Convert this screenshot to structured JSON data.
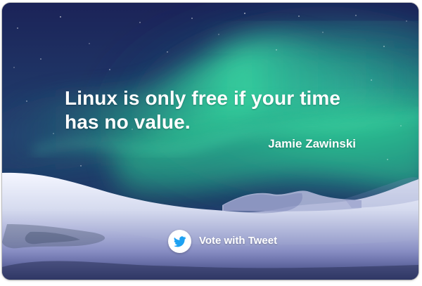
{
  "quote_card": {
    "quote": "Linux is only free if your time has no value.",
    "author": "Jamie Zawinski",
    "tweet_label": "Vote with Tweet",
    "background_image": "aurora-snow-night",
    "twitter_icon": "twitter-bird-icon",
    "colors": {
      "text": "#ffffff",
      "sky_dark": "#1c2456",
      "aurora": "#2fd0a0",
      "snow": "#dfe3f3",
      "twitter_blue": "#1da1f2"
    }
  }
}
